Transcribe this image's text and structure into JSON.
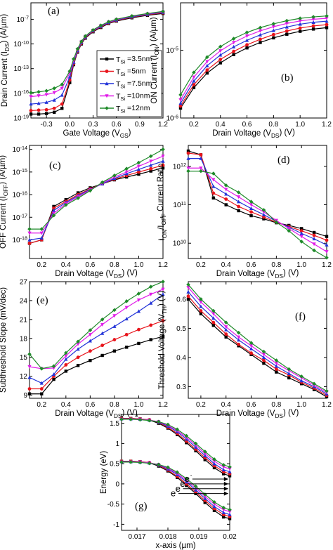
{
  "figure": {
    "legend": {
      "entries": [
        "T_Si=3.5nm",
        "T_Si=5nm",
        "T_Si=7.5nm",
        "T_Si=10nm",
        "T_Si=12nm"
      ],
      "colors": [
        "#000000",
        "#e8141b",
        "#2233d8",
        "#e01be8",
        "#1f8a2a"
      ]
    },
    "electron_labels": [
      "e",
      "e",
      "e",
      "e"
    ]
  },
  "chart_data": [
    {
      "id": "a",
      "type": "line",
      "panel_label": "(a)",
      "xlabel": "Gate Voltage (V_GS)",
      "ylabel": "Drain Current (I_DS) (A/µm)",
      "xlim": [
        -0.5,
        1.2
      ],
      "ylim": [
        1e-19,
        1e-05
      ],
      "yscale": "log",
      "xticks": [
        "-0.3",
        "0.0",
        "0.3",
        "0.6",
        "0.9",
        "1.2"
      ],
      "yticks": [
        "10^-19",
        "10^-16",
        "10^-13",
        "10^-10",
        "10^-7"
      ],
      "x": [
        -0.5,
        -0.4,
        -0.3,
        -0.2,
        -0.1,
        0,
        0.05,
        0.1,
        0.15,
        0.2,
        0.3,
        0.4,
        0.5,
        0.6,
        0.8,
        1.0,
        1.2
      ],
      "series": [
        {
          "name": "T_Si=3.5nm",
          "values": [
            3e-19,
            3e-19,
            3.5e-19,
            5e-19,
            1.5e-18,
            2e-15,
            3e-13,
            1e-11,
            1e-10,
            5e-10,
            3e-09,
            1e-08,
            3e-08,
            6e-08,
            1.5e-07,
            3e-07,
            5e-07
          ]
        },
        {
          "name": "T_Si=5nm",
          "values": [
            8e-19,
            9e-19,
            1e-18,
            1.5e-18,
            5e-18,
            4e-15,
            4e-13,
            1.2e-11,
            1.2e-10,
            6e-10,
            3.5e-09,
            1.2e-08,
            3.5e-08,
            7e-08,
            1.8e-07,
            3.5e-07,
            6e-07
          ]
        },
        {
          "name": "T_Si=7.5nm",
          "values": [
            5e-18,
            6e-18,
            8e-18,
            1.5e-17,
            6e-17,
            1e-14,
            6e-13,
            1.5e-11,
            1.5e-10,
            7e-10,
            4e-09,
            1.4e-08,
            4e-08,
            8e-08,
            2e-07,
            4e-07,
            7e-07
          ]
        },
        {
          "name": "T_Si=10nm",
          "values": [
            4e-17,
            5e-17,
            7e-17,
            1.2e-16,
            4e-16,
            3e-14,
            1e-12,
            2e-11,
            1.8e-10,
            8e-10,
            4.5e-09,
            1.6e-08,
            4.5e-08,
            9e-08,
            2.3e-07,
            4.5e-07,
            8e-07
          ]
        },
        {
          "name": "T_Si=12nm",
          "values": [
            1.2e-16,
            1.5e-16,
            2e-16,
            4e-16,
            1.2e-15,
            5e-14,
            1.5e-12,
            2.5e-11,
            2e-10,
            9e-10,
            5e-09,
            1.8e-08,
            5e-08,
            1e-07,
            2.5e-07,
            5e-07,
            9e-07
          ]
        }
      ]
    },
    {
      "id": "b",
      "type": "line",
      "panel_label": "(b)",
      "xlabel": "Drain Voltage (V_DS) (V)",
      "ylabel": "ON Current (I_ON) (A/µm)",
      "xlim": [
        0.1,
        1.2
      ],
      "ylim": [
        1e-06,
        5e-05
      ],
      "yscale": "log",
      "xticks": [
        "0.2",
        "0.4",
        "0.6",
        "0.8",
        "1.0",
        "1.2"
      ],
      "yticks": [
        "10^-6",
        "10^-5"
      ],
      "x": [
        0.1,
        0.2,
        0.3,
        0.4,
        0.5,
        0.6,
        0.7,
        0.8,
        0.9,
        1.0,
        1.1,
        1.2
      ],
      "series": [
        {
          "name": "T_Si=3.5nm",
          "values": [
            1.4e-06,
            2.8e-06,
            4.6e-06,
            6.5e-06,
            8.6e-06,
            1.08e-05,
            1.3e-05,
            1.52e-05,
            1.72e-05,
            1.9e-05,
            2.05e-05,
            2.15e-05
          ]
        },
        {
          "name": "T_Si=5nm",
          "values": [
            1.5e-06,
            3.1e-06,
            5.1e-06,
            7.3e-06,
            9.6e-06,
            1.2e-05,
            1.45e-05,
            1.7e-05,
            1.92e-05,
            2.12e-05,
            2.28e-05,
            2.38e-05
          ]
        },
        {
          "name": "T_Si=7.5nm",
          "values": [
            1.65e-06,
            3.5e-06,
            5.9e-06,
            8.5e-06,
            1.12e-05,
            1.4e-05,
            1.68e-05,
            1.95e-05,
            2.2e-05,
            2.42e-05,
            2.58e-05,
            2.68e-05
          ]
        },
        {
          "name": "T_Si=10nm",
          "values": [
            1.85e-06,
            4e-06,
            6.8e-06,
            9.8e-06,
            1.3e-05,
            1.62e-05,
            1.93e-05,
            2.22e-05,
            2.48e-05,
            2.7e-05,
            2.86e-05,
            2.95e-05
          ]
        },
        {
          "name": "T_Si=12nm",
          "values": [
            2.2e-06,
            4.7e-06,
            7.9e-06,
            1.13e-05,
            1.48e-05,
            1.83e-05,
            2.15e-05,
            2.45e-05,
            2.72e-05,
            2.95e-05,
            3.1e-05,
            3.2e-05
          ]
        }
      ]
    },
    {
      "id": "c",
      "type": "line",
      "panel_label": "(c)",
      "xlabel": "Drain Voltage (V_DS) (V)",
      "ylabel": "OFF Current (I_OFF) (A/µm)",
      "xlim": [
        0.1,
        1.2
      ],
      "ylim": [
        1.5e-19,
        1.5e-14
      ],
      "yscale": "log",
      "xticks": [
        "0.2",
        "0.4",
        "0.6",
        "0.8",
        "1.0",
        "1.2"
      ],
      "yticks": [
        "10^-18",
        "10^-17",
        "10^-16",
        "10^-15",
        "10^-14"
      ],
      "x": [
        0.1,
        0.2,
        0.3,
        0.4,
        0.5,
        0.6,
        0.7,
        0.8,
        0.9,
        1.0,
        1.1,
        1.2
      ],
      "series": [
        {
          "name": "T_Si=3.5nm",
          "values": [
            7e-19,
            1e-18,
            3e-17,
            6e-17,
            1.2e-16,
            2e-16,
            3e-16,
            4.5e-16,
            6e-16,
            8e-16,
            1.1e-15,
            1.5e-15
          ]
        },
        {
          "name": "T_Si=5nm",
          "values": [
            7e-19,
            1e-18,
            2.5e-17,
            5e-17,
            1e-16,
            1.8e-16,
            3e-16,
            4.8e-16,
            7e-16,
            1e-15,
            1.4e-15,
            2e-15
          ]
        },
        {
          "name": "T_Si=7.5nm",
          "values": [
            1e-18,
            1.2e-18,
            2e-17,
            4.5e-17,
            9e-17,
            1.7e-16,
            3e-16,
            5.2e-16,
            8.5e-16,
            1.3e-15,
            2e-15,
            3e-15
          ]
        },
        {
          "name": "T_Si=10nm",
          "values": [
            2e-18,
            2e-18,
            1.5e-17,
            4e-17,
            8e-17,
            1.6e-16,
            3.2e-16,
            6e-16,
            1e-15,
            1.8e-15,
            3e-15,
            5e-15
          ]
        },
        {
          "name": "T_Si=12nm",
          "values": [
            3e-18,
            3e-18,
            1.2e-17,
            3.5e-17,
            7e-17,
            1.5e-16,
            3.5e-16,
            7e-16,
            1.4e-15,
            2.6e-15,
            5e-15,
            1e-14
          ]
        }
      ]
    },
    {
      "id": "d",
      "type": "line",
      "panel_label": "(d)",
      "xlabel": "Drain Voltage (V_DS) (V)",
      "ylabel": "I_ON/I_OFF Current Ratio",
      "xlim": [
        0.1,
        1.2
      ],
      "ylim": [
        4000000000.0,
        3500000000000.0
      ],
      "yscale": "log",
      "xticks": [
        "0.2",
        "0.4",
        "0.6",
        "0.8",
        "1.0",
        "1.2"
      ],
      "yticks": [
        "10^10",
        "10^11",
        "10^12"
      ],
      "x": [
        0.1,
        0.2,
        0.3,
        0.4,
        0.5,
        0.6,
        0.7,
        0.8,
        0.9,
        1.0,
        1.1,
        1.2
      ],
      "series": [
        {
          "name": "T_Si=3.5nm",
          "values": [
            2500000000000.0,
            2000000000000.0,
            150000000000.0,
            100000000000.0,
            70000000000.0,
            52000000000.0,
            43000000000.0,
            34000000000.0,
            29000000000.0,
            24000000000.0,
            19000000000.0,
            15000000000.0
          ]
        },
        {
          "name": "T_Si=5nm",
          "values": [
            2200000000000.0,
            2000000000000.0,
            200000000000.0,
            140000000000.0,
            90000000000.0,
            65000000000.0,
            48000000000.0,
            35000000000.0,
            27000000000.0,
            21000000000.0,
            16000000000.0,
            12000000000.0
          ]
        },
        {
          "name": "T_Si=7.5nm",
          "values": [
            1600000000000.0,
            1600000000000.0,
            300000000000.0,
            190000000000.0,
            120000000000.0,
            80000000000.0,
            55000000000.0,
            37000000000.0,
            26000000000.0,
            18000000000.0,
            13000000000.0,
            9000000000.0
          ]
        },
        {
          "name": "T_Si=10nm",
          "values": [
            900000000000.0,
            900000000000.0,
            450000000000.0,
            250000000000.0,
            160000000000.0,
            100000000000.0,
            65000000000.0,
            39000000000.0,
            24000000000.0,
            15000000000.0,
            9500000000.0,
            6000000000.0
          ]
        },
        {
          "name": "T_Si=12nm",
          "values": [
            750000000000.0,
            750000000000.0,
            650000000000.0,
            320000000000.0,
            210000000000.0,
            120000000000.0,
            73000000000.0,
            35000000000.0,
            21000000000.0,
            11000000000.0,
            6500000000.0,
            4200000000.0
          ]
        }
      ]
    },
    {
      "id": "e",
      "type": "line",
      "panel_label": "(e)",
      "xlabel": "Drain Voltage (V_DS) (V)",
      "ylabel": "Subthreshold Slope (mV/dec)",
      "xlim": [
        0.1,
        1.2
      ],
      "ylim": [
        8.5,
        27
      ],
      "xticks": [
        "0.2",
        "0.4",
        "0.6",
        "0.8",
        "1.0",
        "1.2"
      ],
      "yticks": [
        "9",
        "12",
        "15",
        "18",
        "21",
        "24",
        "27"
      ],
      "x": [
        0.1,
        0.2,
        0.3,
        0.4,
        0.5,
        0.6,
        0.7,
        0.8,
        0.9,
        1.0,
        1.1,
        1.2
      ],
      "series": [
        {
          "name": "T_Si=3.5nm",
          "values": [
            9.2,
            9.2,
            11.5,
            12.8,
            13.7,
            14.5,
            15.3,
            16.0,
            16.6,
            17.2,
            17.8,
            18.3
          ]
        },
        {
          "name": "T_Si=5nm",
          "values": [
            10,
            10,
            12,
            13.8,
            15,
            16,
            16.9,
            17.8,
            18.6,
            19.4,
            20.1,
            20.8
          ]
        },
        {
          "name": "T_Si=7.5nm",
          "values": [
            11.8,
            10.9,
            12.3,
            14.7,
            16.3,
            17.6,
            18.8,
            19.9,
            21.1,
            22.3,
            23.6,
            25.0
          ]
        },
        {
          "name": "T_Si=10nm",
          "values": [
            13.5,
            13.2,
            13.3,
            15.2,
            17.1,
            18.6,
            20.2,
            21.6,
            22.9,
            24.1,
            25.0,
            25.8
          ]
        },
        {
          "name": "T_Si=12nm",
          "values": [
            15.5,
            13.2,
            13.6,
            15.7,
            17.5,
            19.3,
            21.0,
            22.5,
            23.9,
            25.1,
            26.2,
            27.0
          ]
        }
      ]
    },
    {
      "id": "f",
      "type": "line",
      "panel_label": "(f)",
      "xlabel": "Drain Voltage (V_DS) (V)",
      "ylabel": "Threshold Voltage (V_TH) (V)",
      "xlim": [
        0.1,
        1.2
      ],
      "ylim": [
        0.26,
        0.66
      ],
      "xticks": [
        "0.2",
        "0.4",
        "0.6",
        "0.8",
        "1.0",
        "1.2"
      ],
      "yticks": [
        "0.3",
        "0.4",
        "0.5",
        "0.6"
      ],
      "x": [
        0.1,
        0.2,
        0.3,
        0.4,
        0.5,
        0.6,
        0.7,
        0.8,
        0.9,
        1.0,
        1.1,
        1.2
      ],
      "series": [
        {
          "name": "T_Si=3.5nm",
          "values": [
            0.6,
            0.55,
            0.51,
            0.47,
            0.44,
            0.41,
            0.38,
            0.35,
            0.33,
            0.31,
            0.29,
            0.265
          ]
        },
        {
          "name": "T_Si=5nm",
          "values": [
            0.61,
            0.56,
            0.52,
            0.48,
            0.445,
            0.415,
            0.39,
            0.36,
            0.34,
            0.315,
            0.295,
            0.27
          ]
        },
        {
          "name": "T_Si=7.5nm",
          "values": [
            0.625,
            0.575,
            0.535,
            0.495,
            0.46,
            0.43,
            0.4,
            0.37,
            0.345,
            0.32,
            0.3,
            0.275
          ]
        },
        {
          "name": "T_Si=10nm",
          "values": [
            0.64,
            0.59,
            0.55,
            0.505,
            0.47,
            0.44,
            0.41,
            0.38,
            0.355,
            0.33,
            0.305,
            0.28
          ]
        },
        {
          "name": "T_Si=12nm",
          "values": [
            0.65,
            0.6,
            0.56,
            0.52,
            0.485,
            0.45,
            0.42,
            0.39,
            0.36,
            0.335,
            0.31,
            0.285
          ]
        }
      ]
    },
    {
      "id": "g",
      "type": "line",
      "panel_label": "(g)",
      "xlabel": "x-axis (µm)",
      "ylabel": "Energy (eV)",
      "xlim": [
        0.0165,
        0.02
      ],
      "ylim": [
        -1.15,
        1.72
      ],
      "xticks": [
        "0.017",
        "0.018",
        "0.019",
        "0.02"
      ],
      "yticks": [
        "-1",
        "-0.5",
        "0",
        "0.5",
        "1",
        "1.5"
      ],
      "x": [
        0.0165,
        0.0168,
        0.0171,
        0.0174,
        0.0177,
        0.018,
        0.0183,
        0.0186,
        0.0189,
        0.0192,
        0.0195,
        0.0198,
        0.02
      ],
      "series": [
        {
          "name": "T_Si=3.5nm",
          "values": [
            1.62,
            1.62,
            1.61,
            1.58,
            1.5,
            1.38,
            1.22,
            1.02,
            0.82,
            0.6,
            0.4,
            0.25,
            0.2
          ]
        },
        {
          "name": "T_Si=5nm",
          "values": [
            1.62,
            1.62,
            1.61,
            1.59,
            1.52,
            1.4,
            1.25,
            1.06,
            0.86,
            0.65,
            0.45,
            0.3,
            0.25
          ]
        },
        {
          "name": "T_Si=7.5nm",
          "values": [
            1.61,
            1.61,
            1.6,
            1.58,
            1.53,
            1.43,
            1.29,
            1.11,
            0.91,
            0.7,
            0.5,
            0.35,
            0.3
          ]
        },
        {
          "name": "T_Si=10nm",
          "values": [
            1.6,
            1.6,
            1.6,
            1.58,
            1.54,
            1.45,
            1.32,
            1.15,
            0.96,
            0.75,
            0.56,
            0.42,
            0.37
          ]
        },
        {
          "name": "T_Si=12nm",
          "values": [
            1.6,
            1.6,
            1.59,
            1.57,
            1.54,
            1.47,
            1.35,
            1.19,
            1.0,
            0.8,
            0.61,
            0.47,
            0.42
          ]
        },
        {
          "name": "T_Si=3.5nm",
          "values": [
            0.56,
            0.56,
            0.55,
            0.52,
            0.44,
            0.32,
            0.16,
            -0.04,
            -0.24,
            -0.46,
            -0.66,
            -0.82,
            -0.86
          ]
        },
        {
          "name": "T_Si=5nm",
          "values": [
            0.56,
            0.56,
            0.55,
            0.53,
            0.46,
            0.34,
            0.19,
            0.0,
            -0.2,
            -0.41,
            -0.61,
            -0.76,
            -0.81
          ]
        },
        {
          "name": "T_Si=7.5nm",
          "values": [
            0.55,
            0.55,
            0.54,
            0.52,
            0.47,
            0.37,
            0.23,
            0.05,
            -0.15,
            -0.36,
            -0.56,
            -0.71,
            -0.76
          ]
        },
        {
          "name": "T_Si=10nm",
          "values": [
            0.54,
            0.54,
            0.54,
            0.52,
            0.48,
            0.39,
            0.26,
            0.09,
            -0.1,
            -0.31,
            -0.5,
            -0.64,
            -0.69
          ]
        },
        {
          "name": "T_Si=12nm",
          "values": [
            0.54,
            0.54,
            0.53,
            0.51,
            0.48,
            0.41,
            0.29,
            0.13,
            -0.06,
            -0.26,
            -0.45,
            -0.59,
            -0.64
          ]
        }
      ]
    }
  ]
}
